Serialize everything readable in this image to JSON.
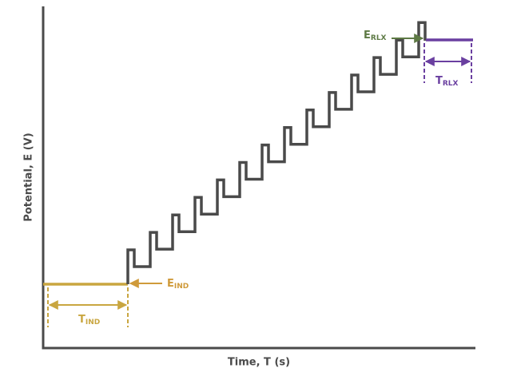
{
  "y_axis_label": "Potential, E (V)",
  "x_axis_label": "Time, T (s)",
  "labels": {
    "e_ind": {
      "main": "E",
      "sub": "IND"
    },
    "t_ind": {
      "main": "T",
      "sub": "IND"
    },
    "e_rlx": {
      "main": "E",
      "sub": "RLX"
    },
    "t_rlx": {
      "main": "T",
      "sub": "RLX"
    }
  }
}
